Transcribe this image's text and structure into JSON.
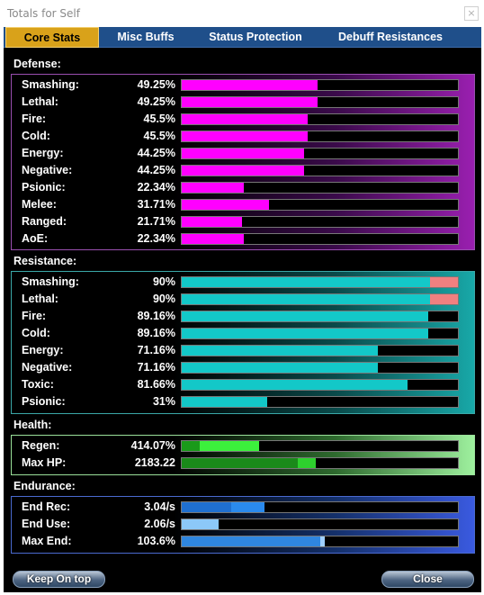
{
  "window": {
    "title": "Totals for Self",
    "close_glyph": "×"
  },
  "tabs": [
    {
      "label": "Core Stats",
      "active": true
    },
    {
      "label": "Misc Buffs",
      "active": false
    },
    {
      "label": "Status Protection",
      "active": false
    },
    {
      "label": "Debuff Resistances",
      "active": false
    }
  ],
  "defense": {
    "title": "Defense:",
    "color": "#ff00ff",
    "rows": [
      {
        "label": "Smashing:",
        "value": "49.25%",
        "fill": 0.4925
      },
      {
        "label": "Lethal:",
        "value": "49.25%",
        "fill": 0.4925
      },
      {
        "label": "Fire:",
        "value": "45.5%",
        "fill": 0.455
      },
      {
        "label": "Cold:",
        "value": "45.5%",
        "fill": 0.455
      },
      {
        "label": "Energy:",
        "value": "44.25%",
        "fill": 0.4425
      },
      {
        "label": "Negative:",
        "value": "44.25%",
        "fill": 0.4425
      },
      {
        "label": "Psionic:",
        "value": "22.34%",
        "fill": 0.2234
      },
      {
        "label": "Melee:",
        "value": "31.71%",
        "fill": 0.3171
      },
      {
        "label": "Ranged:",
        "value": "21.71%",
        "fill": 0.2171
      },
      {
        "label": "AoE:",
        "value": "22.34%",
        "fill": 0.2234
      }
    ]
  },
  "resistance": {
    "title": "Resistance:",
    "color": "#13c8c8",
    "cap_color": "#f08080",
    "rows": [
      {
        "label": "Smashing:",
        "value": "90%",
        "fill": 0.9,
        "over": true
      },
      {
        "label": "Lethal:",
        "value": "90%",
        "fill": 0.9,
        "over": true
      },
      {
        "label": "Fire:",
        "value": "89.16%",
        "fill": 0.8916,
        "over": false
      },
      {
        "label": "Cold:",
        "value": "89.16%",
        "fill": 0.8916,
        "over": false
      },
      {
        "label": "Energy:",
        "value": "71.16%",
        "fill": 0.7116,
        "over": false
      },
      {
        "label": "Negative:",
        "value": "71.16%",
        "fill": 0.7116,
        "over": false
      },
      {
        "label": "Toxic:",
        "value": "81.66%",
        "fill": 0.8166,
        "over": false
      },
      {
        "label": "Psionic:",
        "value": "31%",
        "fill": 0.31,
        "over": false
      }
    ]
  },
  "health": {
    "title": "Health:",
    "rows": [
      {
        "label": "Regen:",
        "value": "414.07%",
        "base": 0.065,
        "fill": 0.28,
        "base_color": "#1a9a1a",
        "color": "#3cf03c"
      },
      {
        "label": "Max HP:",
        "value": "2183.22",
        "base": 0.42,
        "fill": 0.485,
        "base_color": "#1a8a1a",
        "color": "#2ed02e"
      }
    ]
  },
  "endurance": {
    "title": "Endurance:",
    "rows": [
      {
        "label": "End Rec:",
        "value": "3.04/s",
        "base": 0.18,
        "fill": 0.3,
        "base_color": "#1f6fd0",
        "color": "#2a8aee"
      },
      {
        "label": "End Use:",
        "value": "2.06/s",
        "base": 0.0,
        "fill": 0.135,
        "base_color": "#5aa9f0",
        "color": "#8cc8f8"
      },
      {
        "label": "Max End:",
        "value": "103.6%",
        "base": 0.5,
        "fill": 0.515,
        "base_color": "#2f86e0",
        "color": "#9fd0ff"
      }
    ]
  },
  "buttons": {
    "keep_on_top": "Keep On top",
    "close": "Close"
  }
}
